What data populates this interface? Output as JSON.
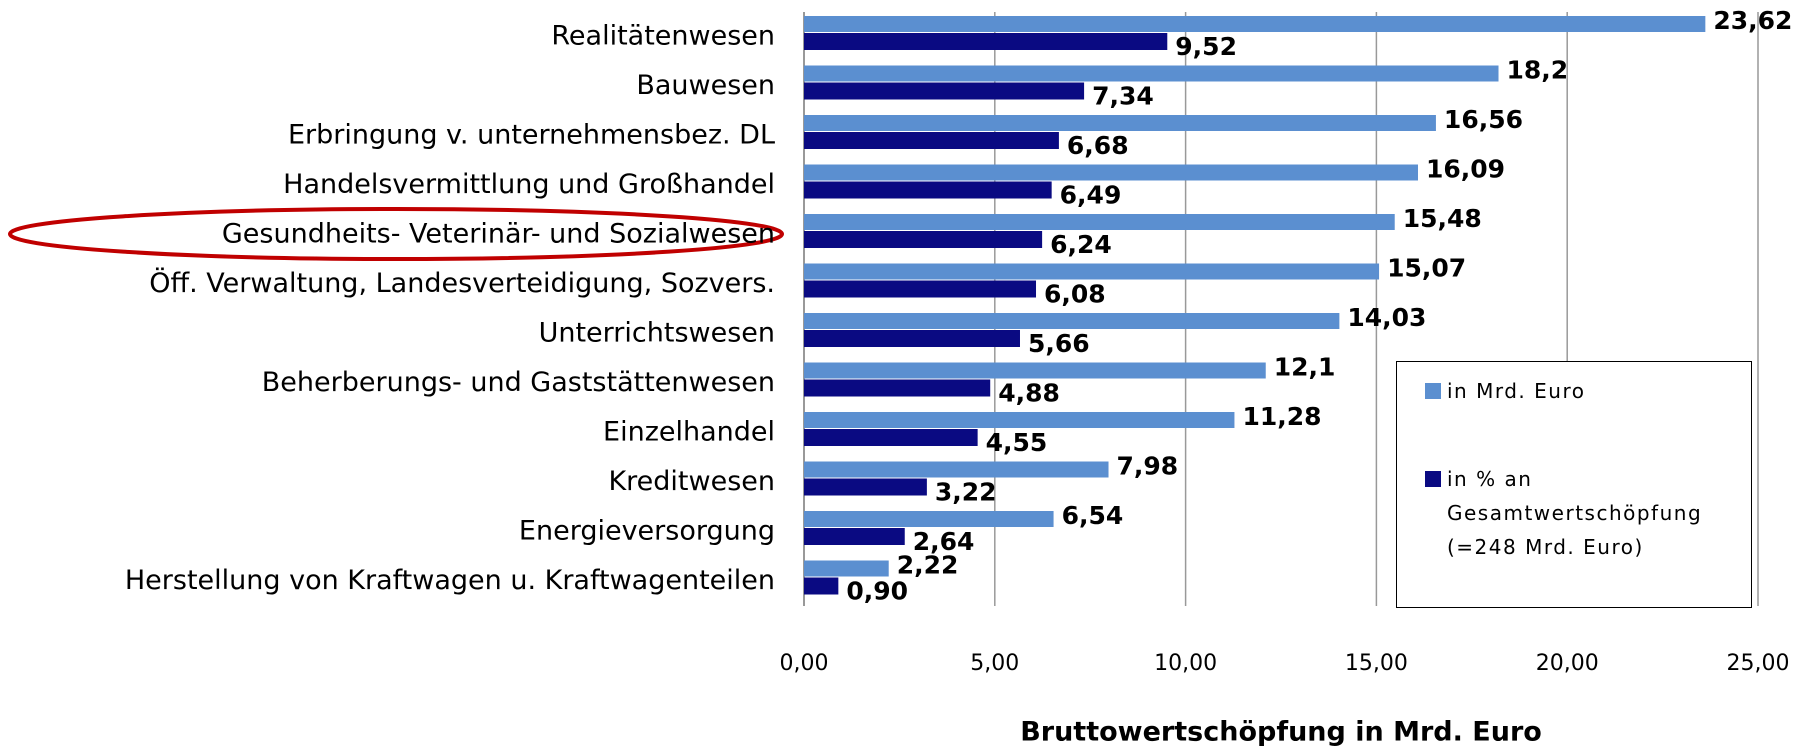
{
  "chart_data": {
    "type": "bar",
    "orientation": "horizontal",
    "categories": [
      "Realitätenwesen",
      "Bauwesen",
      "Erbringung v. unternehmensbez. DL",
      "Handelsvermittlung und Großhandel",
      "Gesundheits- Veterinär- und Sozialwesen",
      "Öff. Verwaltung, Landesverteidigung, Sozvers.",
      "Unterrichtswesen",
      "Beherberungs- und Gaststättenwesen",
      "Einzelhandel",
      "Kreditwesen",
      "Energieversorgung",
      "Herstellung von Kraftwagen u. Kraftwagenteilen"
    ],
    "series": [
      {
        "name": "in Mrd. Euro",
        "color": "#5b8fd0",
        "values": [
          23.62,
          18.2,
          16.56,
          16.09,
          15.48,
          15.07,
          14.03,
          12.1,
          11.28,
          7.98,
          6.54,
          2.22
        ],
        "value_labels": [
          "23,62",
          "18,2",
          "16,56",
          "16,09",
          "15,48",
          "15,07",
          "14,03",
          "12,1",
          "11,28",
          "7,98",
          "6,54",
          "2,22"
        ]
      },
      {
        "name": "in % an Gesamtwertschöpfung (=248 Mrd. Euro)",
        "color": "#0a0a82",
        "values": [
          9.52,
          7.34,
          6.68,
          6.49,
          6.24,
          6.08,
          5.66,
          4.88,
          4.55,
          3.22,
          2.64,
          0.9
        ],
        "value_labels": [
          "9,52",
          "7,34",
          "6,68",
          "6,49",
          "6,24",
          "6,08",
          "5,66",
          "4,88",
          "4,55",
          "3,22",
          "2,64",
          "0,90"
        ]
      }
    ],
    "xlabel": "Bruttowertschöpfung in Mrd. Euro",
    "xlim": [
      0,
      25
    ],
    "xticks": [
      {
        "value": 0,
        "label": "0,00"
      },
      {
        "value": 5,
        "label": "5,00"
      },
      {
        "value": 10,
        "label": "10,00"
      },
      {
        "value": 15,
        "label": "15,00"
      },
      {
        "value": 20,
        "label": "20,00"
      },
      {
        "value": 25,
        "label": "25,00"
      }
    ],
    "grid": true,
    "legend": "lower right"
  }
}
